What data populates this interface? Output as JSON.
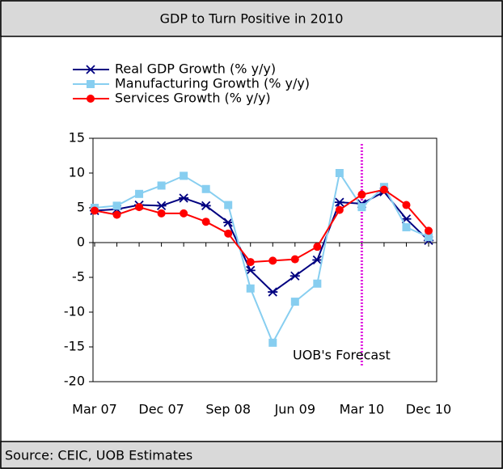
{
  "chart_data": {
    "type": "line",
    "title": "GDP to Turn Positive in 2010",
    "source": "Source: CEIC, UOB Estimates",
    "annotation": "UOB's Forecast",
    "categories": [
      "Mar 07",
      null,
      null,
      "Dec 07",
      null,
      null,
      "Sep 08",
      null,
      null,
      "Jun 09",
      null,
      null,
      "Mar 10",
      null,
      null,
      "Dec 10"
    ],
    "series": [
      {
        "name": "Real GDP Growth (% y/y)",
        "color": "#000080",
        "marker": "star",
        "values": [
          4.6,
          4.8,
          5.4,
          5.3,
          6.4,
          5.3,
          2.9,
          -4.0,
          -7.1,
          -4.8,
          -2.5,
          5.8,
          5.6,
          7.3,
          3.4,
          0.3
        ]
      },
      {
        "name": "Manufacturing Growth (% y/y)",
        "color": "#87cef0",
        "marker": "square",
        "values": [
          5.0,
          5.3,
          7.0,
          8.2,
          9.6,
          7.7,
          5.4,
          -6.6,
          -14.4,
          -8.5,
          -5.9,
          10.0,
          5.1,
          8.0,
          2.2,
          0.8
        ]
      },
      {
        "name": "Services Growth (% y/y)",
        "color": "#ff0000",
        "marker": "circle",
        "values": [
          4.6,
          4.0,
          5.1,
          4.2,
          4.2,
          3.0,
          1.3,
          -2.8,
          -2.6,
          -2.4,
          -0.6,
          4.7,
          6.9,
          7.6,
          5.4,
          1.7
        ]
      }
    ],
    "ylim": [
      -20,
      15
    ],
    "yticks": [
      -20,
      -15,
      -10,
      -5,
      0,
      5,
      10,
      15
    ],
    "grid": false
  }
}
